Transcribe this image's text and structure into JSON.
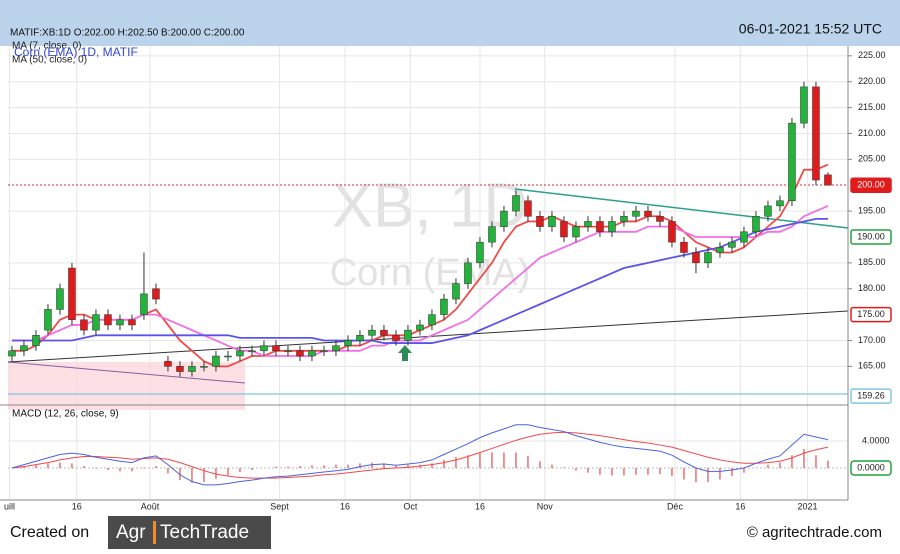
{
  "chart_data": {
    "type": "candlestick",
    "title": "MATIF:XB:1D O:202.00 H:202.50 B:200.00 C:200.00",
    "timestamp": "06-01-2021 15:52 UTC",
    "symbol_label": "Corn (EMA) 1D, MATIF",
    "watermark_symbol": "XB, 1D",
    "watermark_name": "Corn (EMA)",
    "up_color": "#22b33a",
    "down_color": "#e01b1b",
    "grid": true,
    "open": [
      167,
      168,
      169,
      172,
      176,
      184,
      174,
      172,
      175,
      173,
      174,
      175,
      180,
      166,
      165,
      164,
      165,
      165,
      167,
      167,
      168,
      168,
      169,
      168,
      168,
      167,
      168,
      168,
      169,
      170,
      171,
      172,
      171,
      170,
      172,
      173,
      175,
      178,
      181,
      185,
      189,
      192,
      195,
      197,
      194,
      192,
      193,
      190,
      192,
      193,
      191,
      193,
      194,
      195,
      194,
      193,
      189,
      187,
      185,
      187,
      188,
      189,
      191,
      194,
      196,
      197,
      212,
      219,
      202
    ],
    "high": [
      169,
      170,
      172,
      177,
      181,
      185,
      175,
      176,
      176,
      175,
      175,
      187,
      181,
      167,
      166,
      166,
      166,
      168,
      168,
      169,
      169,
      170,
      170,
      169,
      169,
      169,
      169,
      170,
      171,
      172,
      173,
      173,
      172,
      173,
      174,
      176,
      179,
      182,
      186,
      190,
      193,
      196,
      199,
      198,
      195,
      195,
      194,
      193,
      194,
      194,
      194,
      195,
      196,
      196,
      195,
      194,
      190,
      188,
      188,
      189,
      190,
      192,
      195,
      197,
      198,
      213,
      220,
      220,
      202.5
    ],
    "low": [
      166,
      167,
      168,
      171,
      175,
      173,
      171,
      171,
      172,
      172,
      172,
      174,
      177,
      164,
      163,
      163,
      164,
      164,
      166,
      166,
      167,
      167,
      167,
      167,
      166,
      166,
      167,
      167,
      168,
      169,
      170,
      170,
      169,
      169,
      171,
      172,
      174,
      177,
      180,
      184,
      188,
      191,
      194,
      193,
      191,
      191,
      189,
      189,
      191,
      190,
      190,
      192,
      193,
      193,
      192,
      188,
      186,
      183,
      184,
      186,
      187,
      188,
      190,
      193,
      195,
      196,
      211,
      200,
      200
    ],
    "close": [
      168,
      169,
      171,
      176,
      180,
      174,
      172,
      175,
      173,
      174,
      173,
      179,
      178,
      165,
      164,
      165,
      165,
      167,
      167,
      168,
      168,
      169,
      168,
      168,
      167,
      168,
      168,
      169,
      170,
      171,
      172,
      171,
      170,
      172,
      173,
      175,
      178,
      181,
      185,
      189,
      192,
      195,
      198,
      194,
      192,
      194,
      190,
      192,
      193,
      191,
      193,
      194,
      195,
      194,
      193,
      189,
      187,
      185,
      187,
      188,
      189,
      191,
      194,
      196,
      197,
      212,
      219,
      201,
      200
    ],
    "overlays": [
      {
        "name": "MA (7, close, 0)",
        "color": "#f04a4a",
        "values": [
          168,
          168,
          169,
          171,
          174,
          175,
          175,
          174,
          174,
          174,
          174,
          175,
          176,
          173,
          170,
          168,
          166,
          165,
          165,
          166,
          167,
          167,
          168,
          168,
          168,
          168,
          168,
          168,
          169,
          169,
          170,
          171,
          171,
          171,
          172,
          173,
          174,
          176,
          179,
          182,
          185,
          189,
          192,
          193,
          193,
          194,
          193,
          192,
          192,
          192,
          192,
          193,
          193,
          194,
          194,
          193,
          191,
          189,
          188,
          187,
          187,
          188,
          190,
          192,
          194,
          198,
          203,
          203,
          204
        ]
      },
      {
        "color": "#f070e8",
        "values": [
          170,
          170,
          170,
          171,
          172,
          173,
          173,
          174,
          174,
          174,
          174,
          175,
          175,
          174,
          173,
          172,
          171,
          170,
          169,
          168,
          168,
          167,
          167,
          167,
          167,
          167,
          168,
          168,
          168,
          168,
          169,
          169,
          170,
          170,
          170,
          171,
          172,
          173,
          174,
          176,
          178,
          180,
          182,
          184,
          186,
          187,
          188,
          189,
          190,
          191,
          191,
          191,
          191,
          192,
          192,
          192,
          191,
          190,
          190,
          190,
          190,
          190,
          190,
          191,
          191,
          192,
          194,
          195,
          196
        ]
      },
      {
        "name": "MA (50, close, 0)",
        "color": "#5a55e8",
        "values": [
          170,
          170,
          170,
          170,
          170,
          170,
          170.5,
          171,
          171,
          171,
          171,
          171,
          171,
          171,
          171,
          171,
          171,
          171,
          171,
          170.5,
          170.5,
          170.5,
          170.5,
          170.5,
          170.5,
          170.5,
          170,
          170,
          170,
          170,
          170,
          169.5,
          169.5,
          169.5,
          169.5,
          169.5,
          170,
          170.5,
          171,
          172,
          173,
          174,
          175,
          176,
          177,
          178,
          179,
          180,
          181,
          182,
          183,
          184,
          184.5,
          185,
          185.5,
          186,
          186.5,
          187,
          187.5,
          188,
          189,
          190,
          191,
          191.5,
          192,
          192.5,
          193,
          193.5,
          193.5
        ]
      }
    ],
    "xlim": [
      -0.33,
      69.67
    ],
    "xticks": [
      {
        "value": -0.2,
        "label": "uill"
      },
      {
        "value": 5.4,
        "label": "16"
      },
      {
        "value": 11.5,
        "label": "Août"
      },
      {
        "value": 22.3,
        "label": "Sept"
      },
      {
        "value": 27.75,
        "label": "16"
      },
      {
        "value": 33.2,
        "label": "Oct"
      },
      {
        "value": 39,
        "label": "16"
      },
      {
        "value": 44.4,
        "label": "Nov"
      },
      {
        "value": 55.25,
        "label": "Déc"
      },
      {
        "value": 60.7,
        "label": "16"
      },
      {
        "value": 66.3,
        "label": "2021"
      }
    ],
    "ylim": [
      158.5,
      226.9
    ],
    "yticks": [
      {
        "value": 225,
        "label": "225.00"
      },
      {
        "value": 220,
        "label": "220.00"
      },
      {
        "value": 215,
        "label": "215.00"
      },
      {
        "value": 210,
        "label": "210.00"
      },
      {
        "value": 205,
        "label": "205.00"
      },
      {
        "value": 195,
        "label": "195.00"
      },
      {
        "value": 185,
        "label": "185.00"
      },
      {
        "value": 180,
        "label": "180.00"
      },
      {
        "value": 170,
        "label": "170.00"
      },
      {
        "value": 165,
        "label": "165.00"
      }
    ],
    "price_tags": [
      {
        "value": 200,
        "label": "200.00",
        "color": "#e01b1b",
        "filled": true
      },
      {
        "value": 190,
        "label": "190.00",
        "color": "#22a33a",
        "filled": false
      },
      {
        "value": 175,
        "label": "175.00",
        "color": "#e01b1b",
        "filled": false
      },
      {
        "value": 159.26,
        "label": "159.26",
        "color": "#7ec8e3",
        "filled": false
      }
    ],
    "macd": {
      "title": "MACD (12, 26, close, 9)",
      "ylim": [
        -4.74,
        8.89
      ],
      "yticks": [
        {
          "value": 4,
          "label": "4.0000"
        }
      ],
      "zero_tag": {
        "value": 0,
        "label": "0.0000",
        "color": "#22a33a"
      },
      "macd_line": {
        "color": "#4a63e0",
        "values": [
          0,
          0.5,
          1,
          1.5,
          2,
          2.2,
          2,
          1.6,
          1.3,
          1.0,
          0.8,
          1.5,
          1.8,
          0.5,
          -1,
          -2,
          -2.5,
          -2.5,
          -2.3,
          -2,
          -1.8,
          -1.5,
          -1.3,
          -1.2,
          -1,
          -0.8,
          -0.6,
          -0.4,
          -0.2,
          0.2,
          0.5,
          0.6,
          0.4,
          0.6,
          0.8,
          1.2,
          2,
          2.8,
          3.6,
          4.5,
          5.2,
          5.8,
          6.4,
          6.4,
          6,
          5.7,
          5.4,
          4.8,
          4.3,
          3.8,
          3.4,
          3.1,
          2.9,
          2.7,
          2.5,
          1.9,
          0.9,
          0,
          -0.5,
          -0.5,
          -0.3,
          0,
          0.7,
          1.3,
          1.8,
          3.4,
          5,
          4.6,
          4.2
        ]
      },
      "signal_line": {
        "color": "#f04a4a",
        "values": [
          0,
          0.2,
          0.5,
          0.8,
          1.2,
          1.5,
          1.7,
          1.7,
          1.6,
          1.5,
          1.3,
          1.4,
          1.5,
          1.3,
          0.8,
          0.2,
          -0.4,
          -0.9,
          -1.2,
          -1.4,
          -1.5,
          -1.5,
          -1.5,
          -1.4,
          -1.3,
          -1.2,
          -1,
          -0.9,
          -0.7,
          -0.5,
          -0.3,
          -0.1,
          0,
          0.1,
          0.3,
          0.5,
          0.8,
          1.2,
          1.7,
          2.3,
          2.9,
          3.5,
          4.1,
          4.6,
          5,
          5.2,
          5.3,
          5.2,
          5,
          4.8,
          4.5,
          4.2,
          3.9,
          3.7,
          3.4,
          3.1,
          2.6,
          2.1,
          1.6,
          1.2,
          0.9,
          0.7,
          0.7,
          0.8,
          1,
          1.5,
          2.2,
          2.7,
          3.1
        ]
      },
      "histogram": {
        "color": "#e84a4a",
        "values": [
          0,
          0.3,
          0.5,
          0.7,
          0.8,
          0.7,
          0.3,
          -0.1,
          -0.3,
          -0.5,
          -0.5,
          0.1,
          0.3,
          -0.8,
          -1.8,
          -2.2,
          -2.1,
          -1.6,
          -1.1,
          -0.6,
          -0.3,
          0,
          0.2,
          0.2,
          0.3,
          0.4,
          0.4,
          0.5,
          0.5,
          0.7,
          0.8,
          0.7,
          0.4,
          0.5,
          0.5,
          0.7,
          1.2,
          1.6,
          1.9,
          2.2,
          2.3,
          2.3,
          2.3,
          1.8,
          1,
          0.5,
          0.1,
          -0.4,
          -0.7,
          -1,
          -1.1,
          -1.1,
          -1,
          -1,
          -0.9,
          -1.2,
          -1.7,
          -2.1,
          -2.1,
          -1.7,
          -1.2,
          -0.7,
          0,
          0.5,
          0.8,
          1.9,
          2.8,
          1.9,
          1.1
        ]
      }
    }
  },
  "footer": {
    "created_on": "Created on",
    "logo_left": "Agr",
    "logo_right": "TechTrade",
    "copyright": "© agritechtrade.com"
  }
}
